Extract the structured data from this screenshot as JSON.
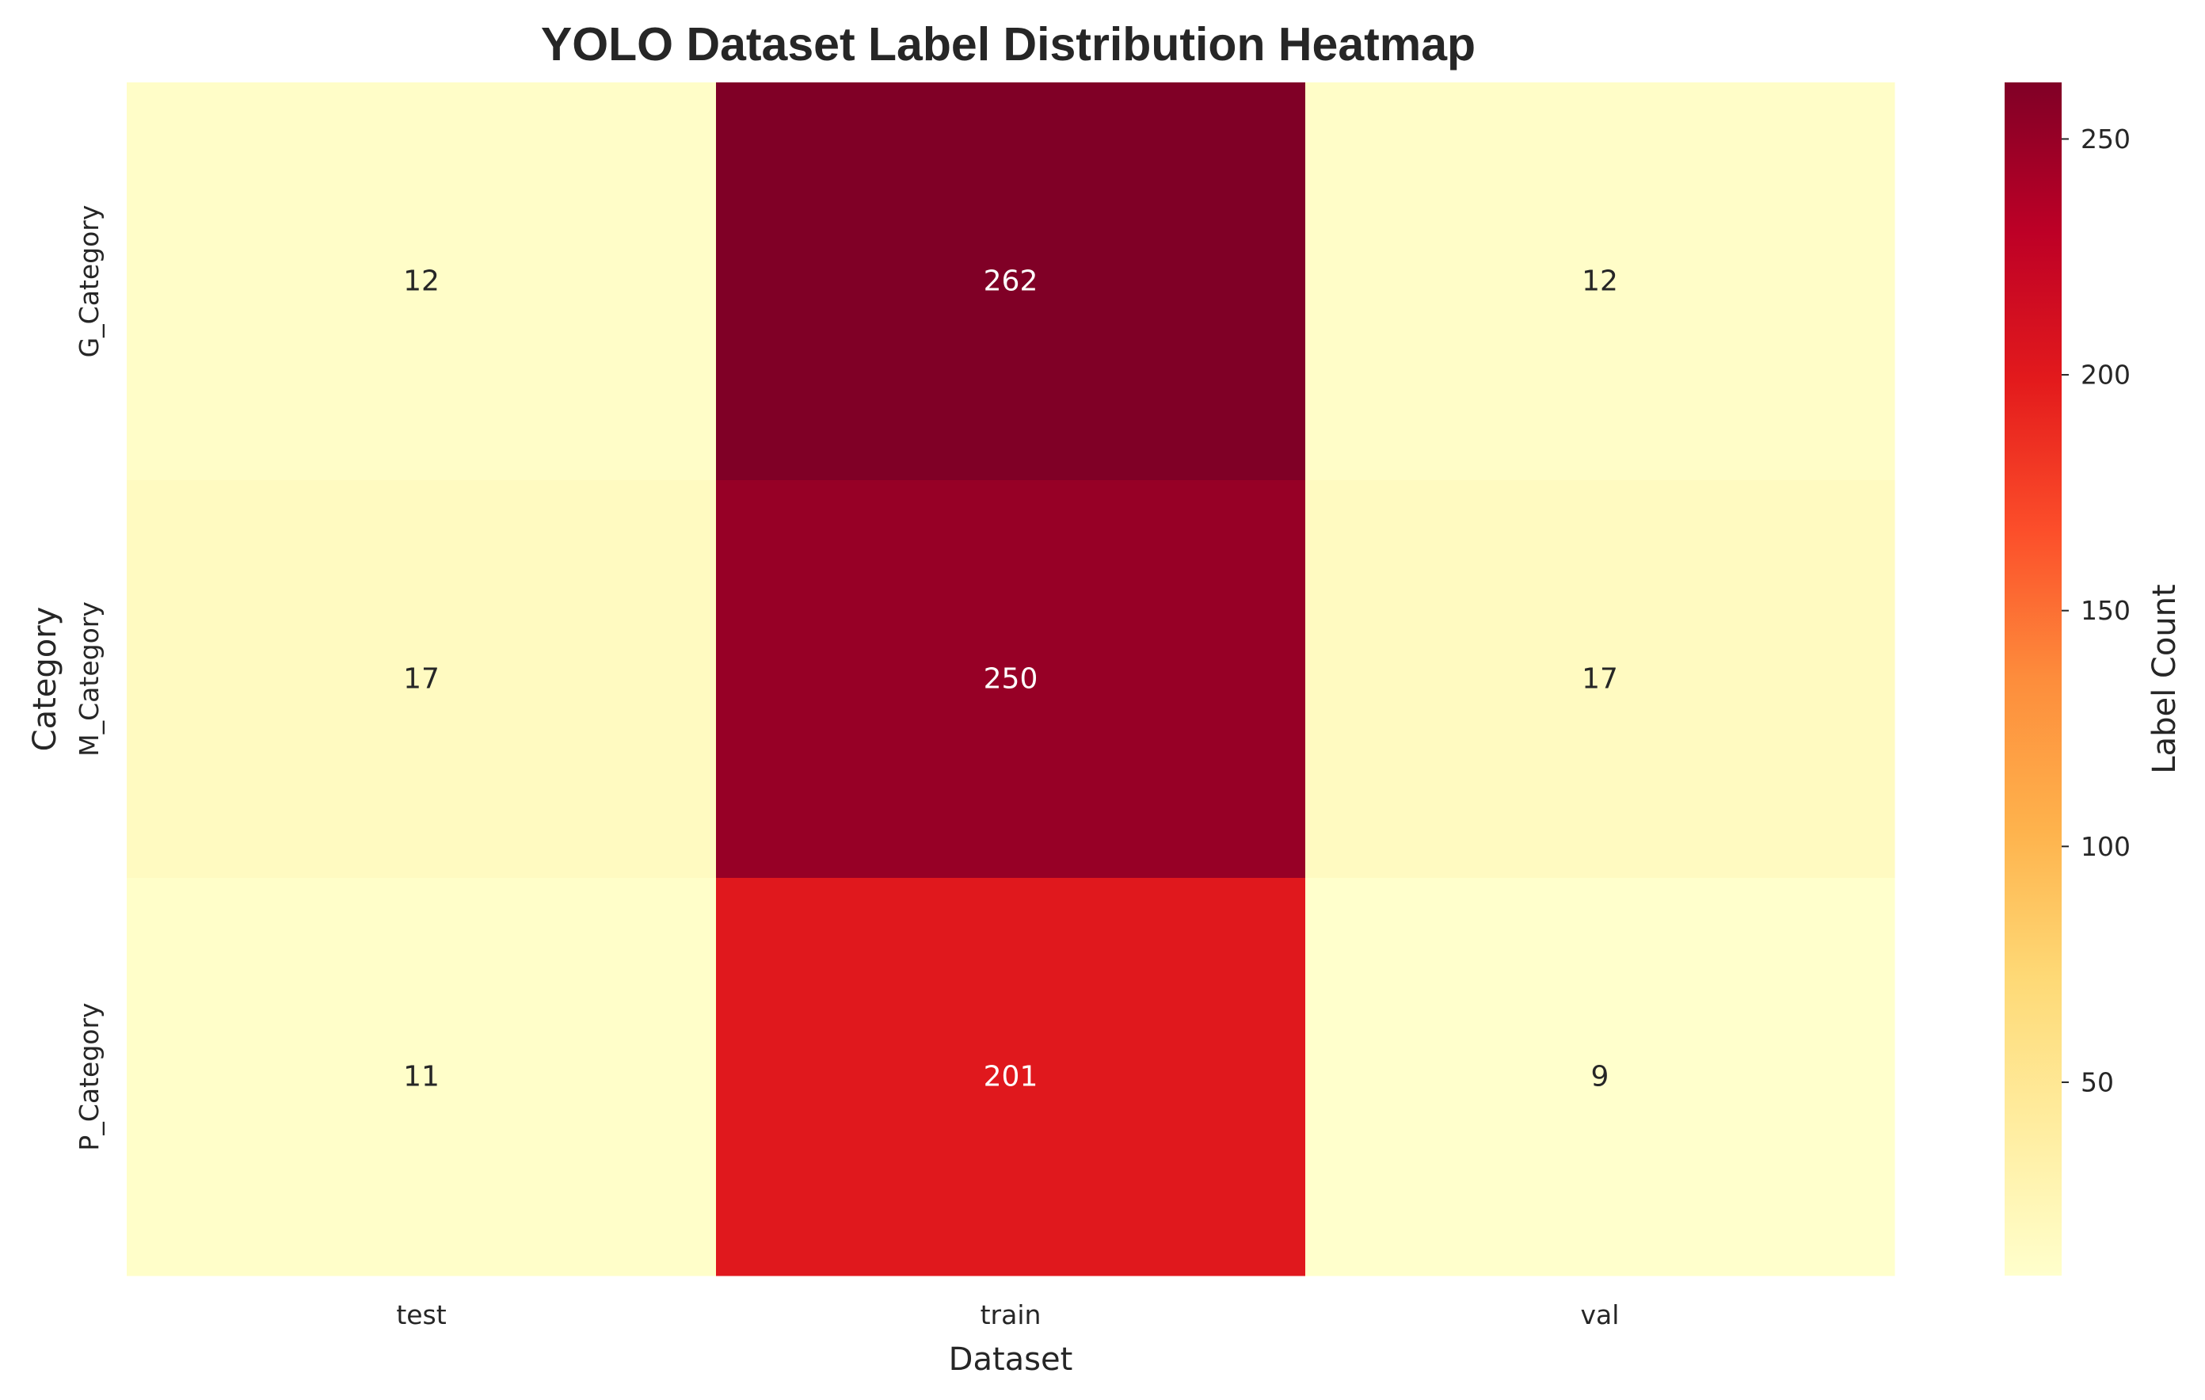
{
  "chart_data": {
    "type": "heatmap",
    "title": "YOLO Dataset Label Distribution Heatmap",
    "xlabel": "Dataset",
    "ylabel": "Category",
    "x_categories": [
      "test",
      "train",
      "val"
    ],
    "y_categories": [
      "G_Category",
      "M_Category",
      "P_Category"
    ],
    "values": [
      [
        12,
        262,
        12
      ],
      [
        17,
        250,
        17
      ],
      [
        11,
        201,
        9
      ]
    ],
    "colorbar": {
      "label": "Label Count",
      "ticks": [
        50,
        100,
        150,
        200,
        250
      ],
      "range": [
        9,
        262
      ],
      "colormap": "YlOrRd"
    },
    "grid": false
  }
}
